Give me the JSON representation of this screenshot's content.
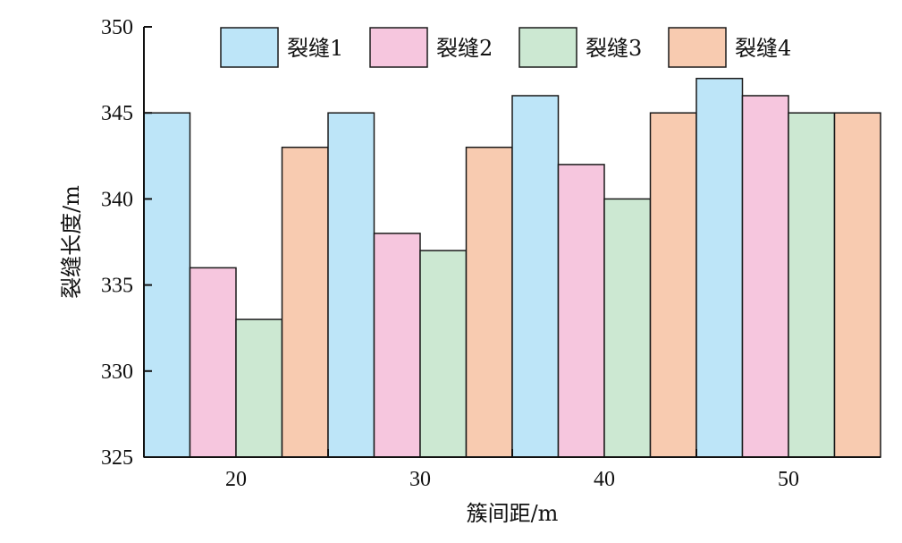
{
  "chart_data": {
    "type": "bar",
    "categories": [
      "20",
      "30",
      "40",
      "50"
    ],
    "series": [
      {
        "name": "裂缝1",
        "color": "#bde5f8",
        "values": [
          345,
          345,
          346,
          347
        ]
      },
      {
        "name": "裂缝2",
        "color": "#f6c6de",
        "values": [
          336,
          338,
          342,
          346
        ]
      },
      {
        "name": "裂缝3",
        "color": "#cce8d2",
        "values": [
          333,
          337,
          340,
          345
        ]
      },
      {
        "name": "裂缝4",
        "color": "#f8cbb0",
        "values": [
          343,
          343,
          345,
          345
        ]
      }
    ],
    "xlabel": "簇间距/m",
    "ylabel": "裂缝长度/m",
    "ylim": [
      325,
      350
    ],
    "yticks": [
      "325",
      "330",
      "335",
      "340",
      "345",
      "350"
    ],
    "grid": false,
    "legend_position": "top",
    "bar_outline_color": "#1a1a1a"
  }
}
